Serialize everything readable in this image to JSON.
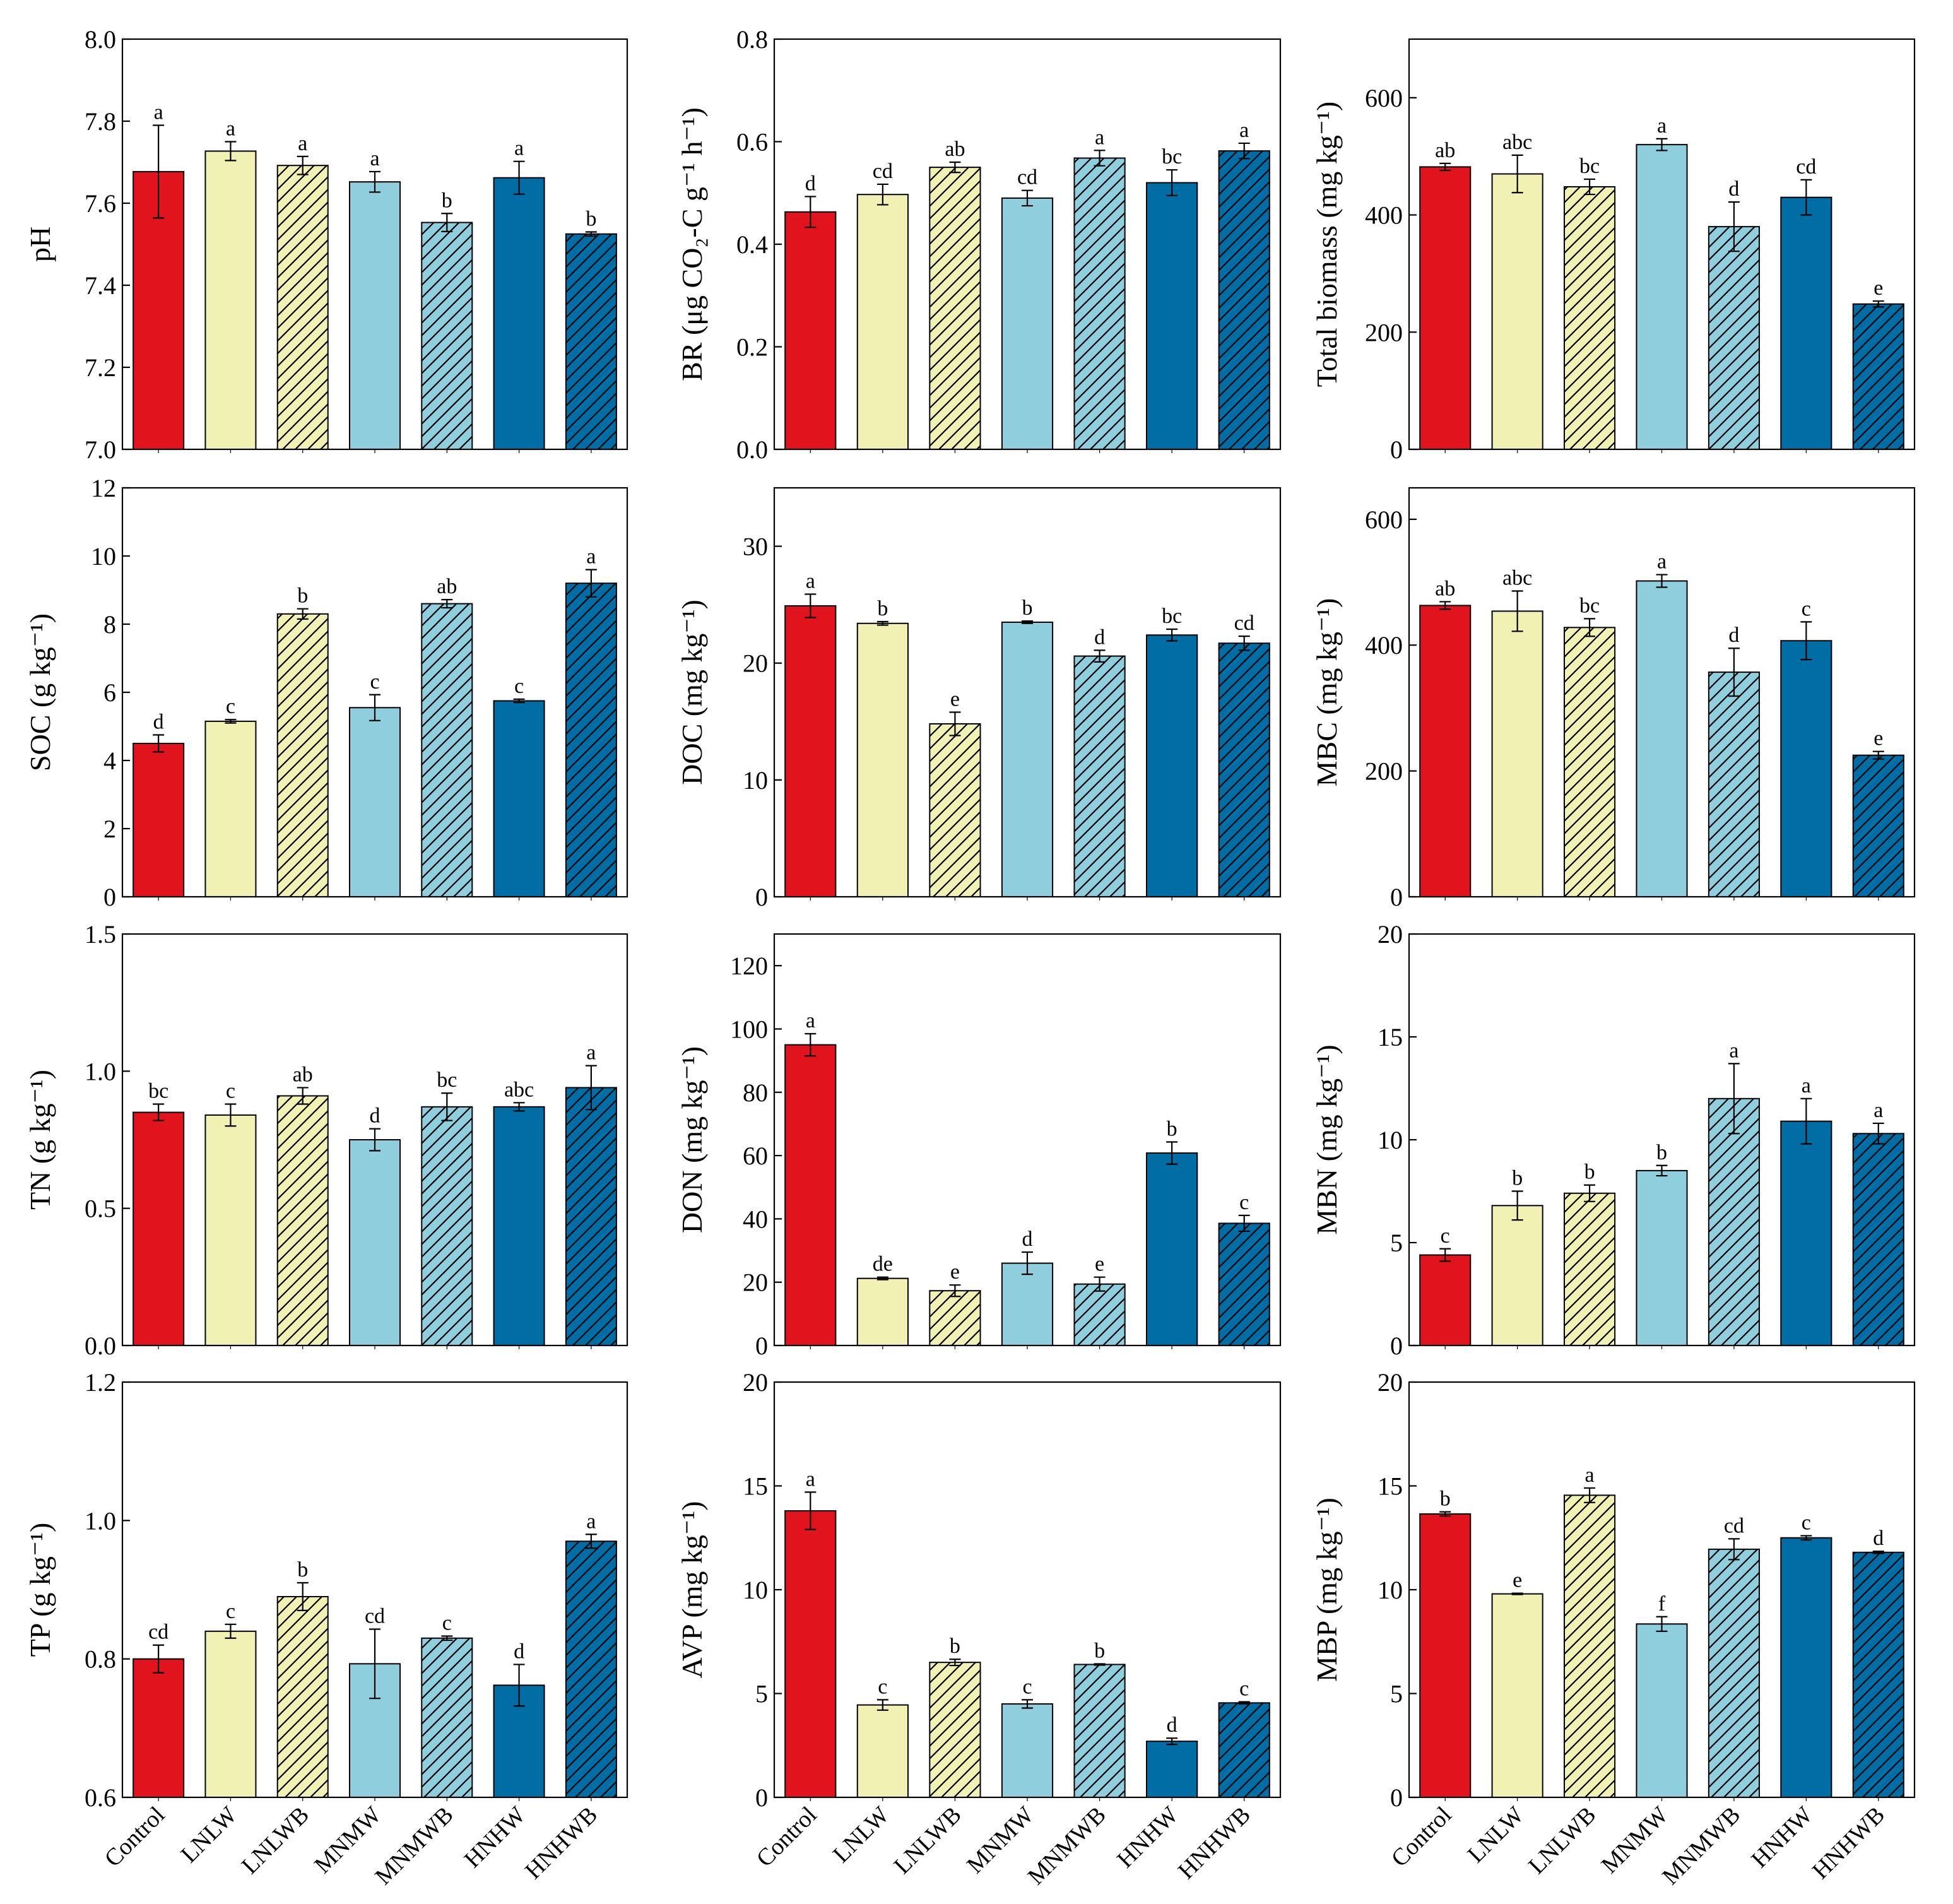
{
  "figure": {
    "title": ""
  },
  "categories": [
    "Control",
    "LNLW",
    "LNLWB",
    "MNMW",
    "MNMWB",
    "HNHW",
    "HNHWB"
  ],
  "colors": [
    "#e1141d",
    "#f1f1b4",
    "#f1f1b4",
    "#8ecedd",
    "#8ecedd",
    "#006ea4",
    "#006ea4"
  ],
  "hatched": [
    false,
    false,
    true,
    false,
    true,
    false,
    true
  ],
  "chart_data": [
    {
      "type": "bar",
      "id": "pH",
      "ylabel": "pH",
      "ylim": [
        7.0,
        8.0
      ],
      "yticks": [
        7.0,
        7.2,
        7.4,
        7.6,
        7.8,
        8.0
      ],
      "ytick_labels": [
        "7.0",
        "7.2",
        "7.4",
        "7.6",
        "7.8",
        "8.0"
      ],
      "values": [
        7.677,
        7.727,
        7.692,
        7.652,
        7.553,
        7.662,
        7.525
      ],
      "errors": [
        0.113,
        0.023,
        0.022,
        0.025,
        0.022,
        0.04,
        0.005
      ],
      "letters": [
        "a",
        "a",
        "a",
        "a",
        "b",
        "a",
        "b"
      ]
    },
    {
      "type": "bar",
      "id": "BR",
      "ylabel": "BR (μg CO₂-C g⁻¹ h⁻¹)",
      "ylim": [
        0.0,
        0.8
      ],
      "yticks": [
        0.0,
        0.2,
        0.4,
        0.6,
        0.8
      ],
      "ytick_labels": [
        "0.0",
        "0.2",
        "0.4",
        "0.6",
        "0.8"
      ],
      "values": [
        0.463,
        0.497,
        0.55,
        0.49,
        0.568,
        0.52,
        0.582
      ],
      "errors": [
        0.03,
        0.02,
        0.01,
        0.015,
        0.015,
        0.025,
        0.015
      ],
      "letters": [
        "d",
        "cd",
        "ab",
        "cd",
        "a",
        "bc",
        "a"
      ]
    },
    {
      "type": "bar",
      "id": "TotalBiomass",
      "ylabel": "Total biomass (mg kg⁻¹)",
      "ylim": [
        0,
        700
      ],
      "yticks": [
        0,
        200,
        400,
        600
      ],
      "ytick_labels": [
        "0",
        "200",
        "400",
        "600"
      ],
      "values": [
        482,
        470,
        448,
        520,
        380,
        430,
        248
      ],
      "errors": [
        6,
        32,
        13,
        10,
        42,
        30,
        5
      ],
      "letters": [
        "ab",
        "abc",
        "bc",
        "a",
        "d",
        "cd",
        "e"
      ]
    },
    {
      "type": "bar",
      "id": "SOC",
      "ylabel": "SOC (g kg⁻¹)",
      "ylim": [
        0,
        12
      ],
      "yticks": [
        0,
        2,
        4,
        6,
        8,
        10,
        12
      ],
      "ytick_labels": [
        "0",
        "2",
        "4",
        "6",
        "8",
        "10",
        "12"
      ],
      "values": [
        4.5,
        5.15,
        8.3,
        5.55,
        8.6,
        5.75,
        9.2
      ],
      "errors": [
        0.25,
        0.05,
        0.15,
        0.38,
        0.12,
        0.05,
        0.4
      ],
      "letters": [
        "d",
        "c",
        "b",
        "c",
        "ab",
        "c",
        "a"
      ]
    },
    {
      "type": "bar",
      "id": "DOC",
      "ylabel": "DOC (mg kg⁻¹)",
      "ylim": [
        0,
        35
      ],
      "yticks": [
        0,
        10,
        20,
        30
      ],
      "ytick_labels": [
        "0",
        "10",
        "20",
        "30"
      ],
      "values": [
        24.9,
        23.4,
        14.8,
        23.5,
        20.6,
        22.4,
        21.7
      ],
      "errors": [
        1.0,
        0.15,
        1.0,
        0.1,
        0.5,
        0.5,
        0.6
      ],
      "letters": [
        "a",
        "b",
        "e",
        "b",
        "d",
        "bc",
        "cd"
      ]
    },
    {
      "type": "bar",
      "id": "MBC",
      "ylabel": "MBC (mg kg⁻¹)",
      "ylim": [
        0,
        650
      ],
      "yticks": [
        0,
        200,
        400,
        600
      ],
      "ytick_labels": [
        "0",
        "200",
        "400",
        "600"
      ],
      "values": [
        463,
        454,
        428,
        502,
        357,
        407,
        225
      ],
      "errors": [
        6,
        32,
        14,
        10,
        38,
        30,
        6
      ],
      "letters": [
        "ab",
        "abc",
        "bc",
        "a",
        "d",
        "c",
        "e"
      ]
    },
    {
      "type": "bar",
      "id": "TN",
      "ylabel": "TN (g kg⁻¹)",
      "ylim": [
        0.0,
        1.5
      ],
      "yticks": [
        0.0,
        0.5,
        1.0,
        1.5
      ],
      "ytick_labels": [
        "0.0",
        "0.5",
        "1.0",
        "1.5"
      ],
      "values": [
        0.85,
        0.84,
        0.91,
        0.75,
        0.87,
        0.87,
        0.94
      ],
      "errors": [
        0.03,
        0.04,
        0.03,
        0.04,
        0.05,
        0.015,
        0.08
      ],
      "letters": [
        "bc",
        "c",
        "ab",
        "d",
        "bc",
        "abc",
        "a"
      ]
    },
    {
      "type": "bar",
      "id": "DON",
      "ylabel": "DON (mg kg⁻¹)",
      "ylim": [
        0,
        130
      ],
      "yticks": [
        0,
        20,
        40,
        60,
        80,
        100,
        120
      ],
      "ytick_labels": [
        "0",
        "20",
        "40",
        "60",
        "80",
        "100",
        "120"
      ],
      "values": [
        95,
        21.2,
        17.3,
        26,
        19.4,
        60.8,
        38.6
      ],
      "errors": [
        3.5,
        0.4,
        1.8,
        3.5,
        2.2,
        3.5,
        2.5
      ],
      "letters": [
        "a",
        "de",
        "e",
        "d",
        "e",
        "b",
        "c"
      ]
    },
    {
      "type": "bar",
      "id": "MBN",
      "ylabel": "MBN (mg kg⁻¹)",
      "ylim": [
        0,
        20
      ],
      "yticks": [
        0,
        5,
        10,
        15,
        20
      ],
      "ytick_labels": [
        "0",
        "5",
        "10",
        "15",
        "20"
      ],
      "values": [
        4.4,
        6.8,
        7.4,
        8.5,
        12.0,
        10.9,
        10.3
      ],
      "errors": [
        0.3,
        0.7,
        0.4,
        0.25,
        1.7,
        1.1,
        0.5
      ],
      "letters": [
        "c",
        "b",
        "b",
        "b",
        "a",
        "a",
        "a"
      ]
    },
    {
      "type": "bar",
      "id": "TP",
      "ylabel": "TP (g kg⁻¹)",
      "ylim": [
        0.6,
        1.2
      ],
      "yticks": [
        0.6,
        0.8,
        1.0,
        1.2
      ],
      "ytick_labels": [
        "0.6",
        "0.8",
        "1.0",
        "1.2"
      ],
      "values": [
        0.8,
        0.84,
        0.89,
        0.793,
        0.83,
        0.762,
        0.97
      ],
      "errors": [
        0.02,
        0.01,
        0.02,
        0.05,
        0.003,
        0.03,
        0.01
      ],
      "letters": [
        "cd",
        "c",
        "b",
        "cd",
        "c",
        "d",
        "a"
      ]
    },
    {
      "type": "bar",
      "id": "AVP",
      "ylabel": "AVP (mg kg⁻¹)",
      "ylim": [
        0,
        20
      ],
      "yticks": [
        0,
        5,
        10,
        15,
        20
      ],
      "ytick_labels": [
        "0",
        "5",
        "10",
        "15",
        "20"
      ],
      "values": [
        13.8,
        4.45,
        6.5,
        4.5,
        6.4,
        2.7,
        4.55
      ],
      "errors": [
        0.9,
        0.25,
        0.15,
        0.2,
        0.03,
        0.15,
        0.05
      ],
      "letters": [
        "a",
        "c",
        "b",
        "c",
        "b",
        "d",
        "c"
      ]
    },
    {
      "type": "bar",
      "id": "MBP",
      "ylabel": "MBP (mg kg⁻¹)",
      "ylim": [
        0,
        20
      ],
      "yticks": [
        0,
        5,
        10,
        15,
        20
      ],
      "ytick_labels": [
        "0",
        "5",
        "10",
        "15",
        "20"
      ],
      "values": [
        13.65,
        9.8,
        14.55,
        8.35,
        11.95,
        12.5,
        11.8
      ],
      "errors": [
        0.1,
        0.03,
        0.35,
        0.35,
        0.5,
        0.1,
        0.05
      ],
      "letters": [
        "b",
        "e",
        "a",
        "f",
        "cd",
        "c",
        "d"
      ]
    }
  ]
}
